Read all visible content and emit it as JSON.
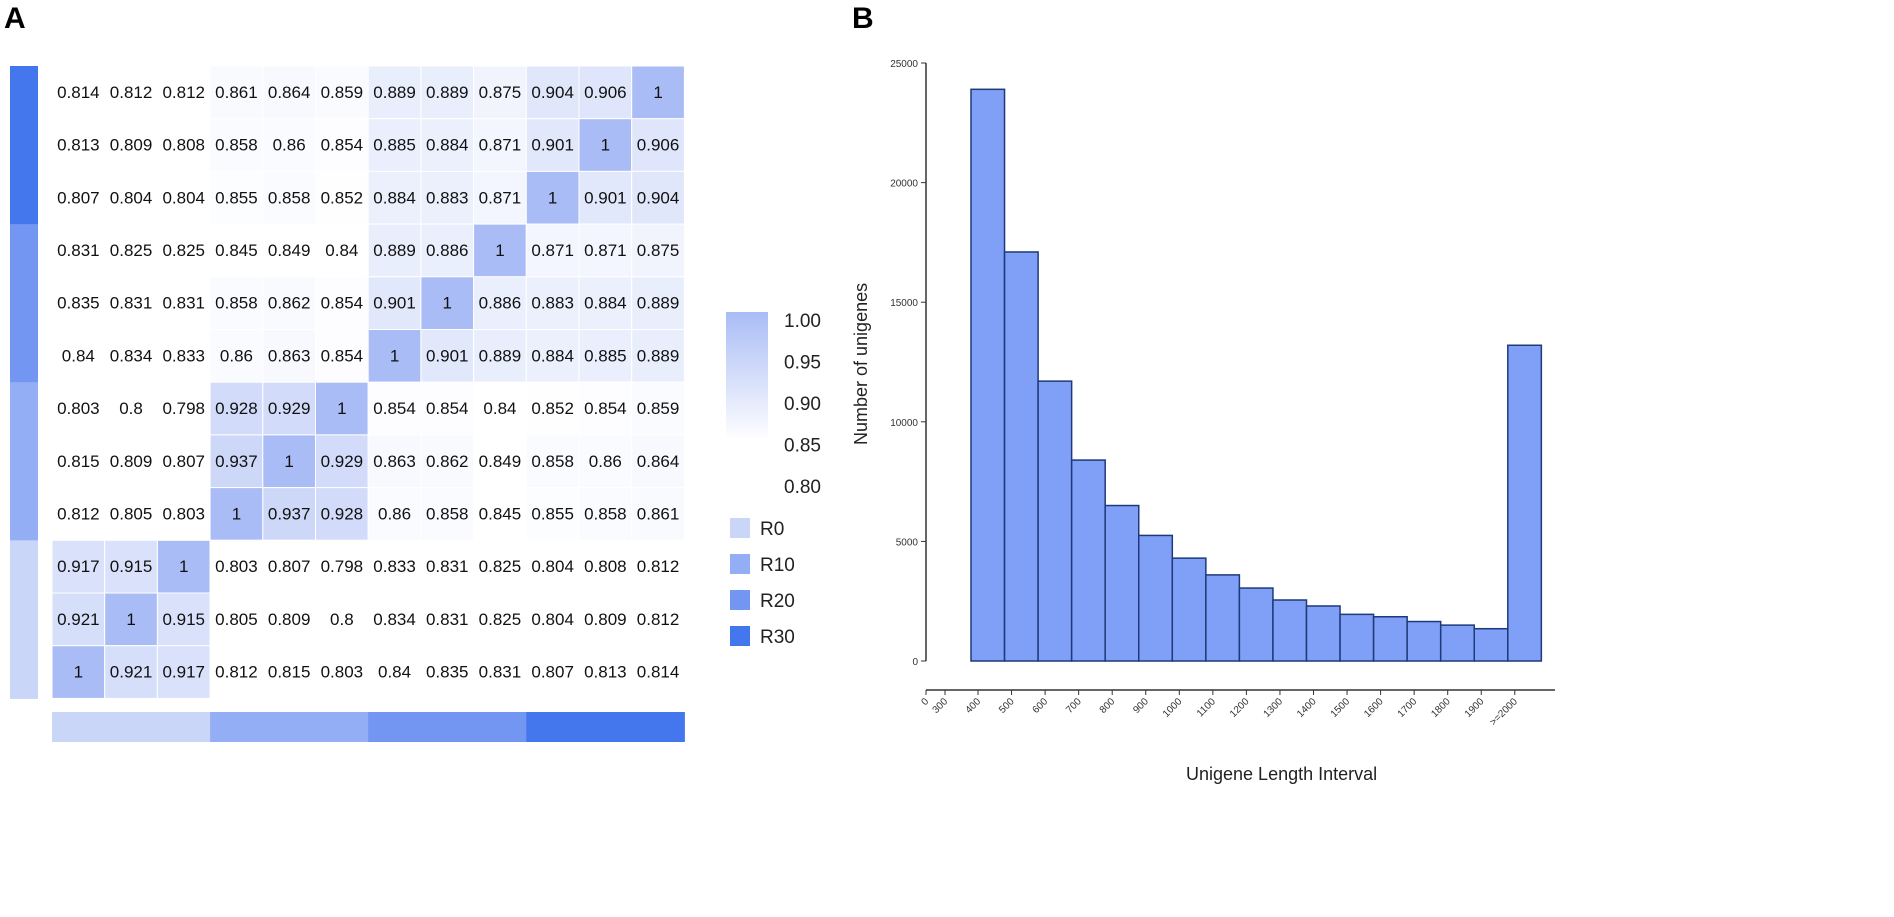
{
  "panel_labels": [
    "A",
    "B"
  ],
  "chart_data": [
    {
      "type": "heatmap",
      "title": "A",
      "matrix": [
        [
          0.814,
          0.812,
          0.812,
          0.861,
          0.864,
          0.859,
          0.889,
          0.889,
          0.875,
          0.904,
          0.906,
          1
        ],
        [
          0.813,
          0.809,
          0.808,
          0.858,
          0.86,
          0.854,
          0.885,
          0.884,
          0.871,
          0.901,
          1,
          0.906
        ],
        [
          0.807,
          0.804,
          0.804,
          0.855,
          0.858,
          0.852,
          0.884,
          0.883,
          0.871,
          1,
          0.901,
          0.904
        ],
        [
          0.831,
          0.825,
          0.825,
          0.845,
          0.849,
          0.84,
          0.889,
          0.886,
          1,
          0.871,
          0.871,
          0.875
        ],
        [
          0.835,
          0.831,
          0.831,
          0.858,
          0.862,
          0.854,
          0.901,
          1,
          0.886,
          0.883,
          0.884,
          0.889
        ],
        [
          0.84,
          0.834,
          0.833,
          0.86,
          0.863,
          0.854,
          1,
          0.901,
          0.889,
          0.884,
          0.885,
          0.889
        ],
        [
          0.803,
          0.8,
          0.798,
          0.928,
          0.929,
          1,
          0.854,
          0.854,
          0.84,
          0.852,
          0.854,
          0.859
        ],
        [
          0.815,
          0.809,
          0.807,
          0.937,
          1,
          0.929,
          0.863,
          0.862,
          0.849,
          0.858,
          0.86,
          0.864
        ],
        [
          0.812,
          0.805,
          0.803,
          1,
          0.937,
          0.928,
          0.86,
          0.858,
          0.845,
          0.855,
          0.858,
          0.861
        ],
        [
          0.917,
          0.915,
          1,
          0.803,
          0.807,
          0.798,
          0.833,
          0.831,
          0.825,
          0.804,
          0.808,
          0.812
        ],
        [
          0.921,
          1,
          0.915,
          0.805,
          0.809,
          0.8,
          0.834,
          0.831,
          0.825,
          0.804,
          0.809,
          0.812
        ],
        [
          1,
          0.921,
          0.917,
          0.812,
          0.815,
          0.803,
          0.84,
          0.835,
          0.831,
          0.807,
          0.813,
          0.814
        ]
      ],
      "row_groups": [
        "R30",
        "R30",
        "R30",
        "R20",
        "R20",
        "R20",
        "R10",
        "R10",
        "R10",
        "R0",
        "R0",
        "R0"
      ],
      "col_groups": [
        "R0",
        "R0",
        "R0",
        "R10",
        "R10",
        "R10",
        "R20",
        "R20",
        "R20",
        "R30",
        "R30",
        "R30"
      ],
      "colorbar": {
        "ticks": [
          "1.00",
          "0.95",
          "0.90",
          "0.85",
          "0.80"
        ],
        "range": [
          0.85,
          1.0
        ],
        "low_color": "#ffffff",
        "high_color": "#a9bcf5"
      },
      "legend": [
        {
          "label": "R0",
          "color": "#cad6f8"
        },
        {
          "label": "R10",
          "color": "#94aef5"
        },
        {
          "label": "R20",
          "color": "#7296f2"
        },
        {
          "label": "R30",
          "color": "#4477ee"
        }
      ]
    },
    {
      "type": "bar",
      "title": "B",
      "xlabel": "Unigene Length Interval",
      "ylabel": "Number of unigenes",
      "x_tick_labels": [
        "0",
        "300",
        "400",
        "500",
        "600",
        "700",
        "800",
        "900",
        "1000",
        "1100",
        "1200",
        "1300",
        "1400",
        "1500",
        "1600",
        "1700",
        "1800",
        "1900",
        ">=2000"
      ],
      "categories": [
        "300-400",
        "400-500",
        "500-600",
        "600-700",
        "700-800",
        "800-900",
        "900-1000",
        "1000-1100",
        "1100-1200",
        "1200-1300",
        "1300-1400",
        "1400-1500",
        "1500-1600",
        "1600-1700",
        "1700-1800",
        "1800-1900",
        ">=2000"
      ],
      "values": [
        23900,
        17100,
        11700,
        8400,
        6500,
        5250,
        4300,
        3600,
        3050,
        2550,
        2300,
        1950,
        1850,
        1650,
        1500,
        1350,
        13200
      ],
      "y_ticks": [
        0,
        5000,
        10000,
        15000,
        20000,
        25000
      ],
      "ylim": [
        0,
        25000
      ],
      "bar_color": "#809ff6",
      "edge_color": "#1f3a7a"
    }
  ]
}
